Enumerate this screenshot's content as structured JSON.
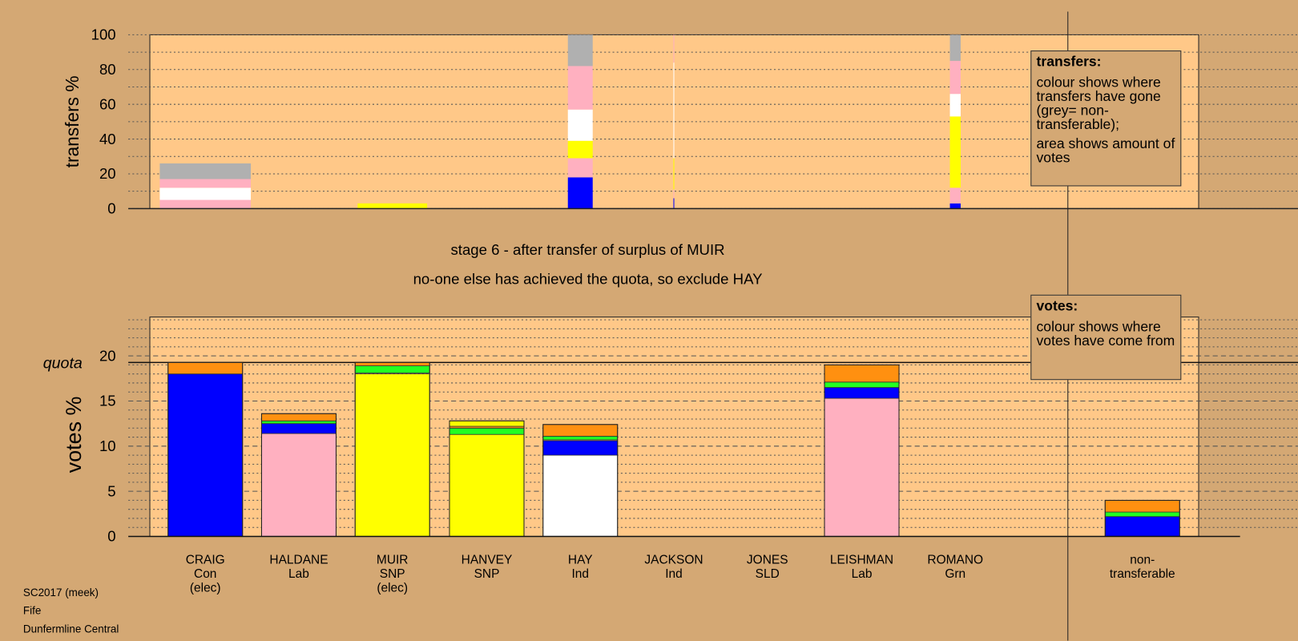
{
  "info": {
    "election": "SC2017 (meek)",
    "council": "Fife",
    "ward": "Dunfermline Central"
  },
  "stage": {
    "line1": "stage 6 - after transfer of surplus of MUIR",
    "line2": "no-one else has achieved the quota, so exclude HAY"
  },
  "legend_transfers": {
    "title": "transfers:",
    "text1": "colour shows where transfers have gone (grey= non-transferable);",
    "text2": "area shows amount of votes"
  },
  "legend_votes": {
    "title": "votes:",
    "text1": "colour shows where votes have come from"
  },
  "colors": {
    "Con": "#0000ff",
    "Lab": "#ffb0c0",
    "SNP": "#ffff00",
    "Ind": "#ffffff",
    "Grn": "#22ff22",
    "SLD": "#ff9010",
    "nontransferable": "#b0b0b0",
    "plot_bg": "#ffc888",
    "page_bg": "#d4a874"
  },
  "chart_data": [
    {
      "type": "bar",
      "title": "transfers",
      "ylabel": "transfers %",
      "ylim": [
        0,
        100
      ],
      "yticks": [
        0,
        20,
        40,
        60,
        80,
        100
      ],
      "note": "stacked segments show share of transfers (bottom to top); width reflects amount of votes",
      "columns": [
        {
          "candidate": "CRAIG",
          "amount": 110,
          "segments": [
            [
              "Lab",
              0,
              5
            ],
            [
              "Ind",
              5,
              12
            ],
            [
              "Lab",
              12,
              17
            ],
            [
              "nontransferable",
              17,
              26
            ]
          ]
        },
        {
          "candidate": "MUIR",
          "amount": 84,
          "segments": [
            [
              "SNP",
              0,
              3
            ]
          ]
        },
        {
          "candidate": "JACKSON",
          "amount": 1,
          "segments": [
            [
              "Con",
              0,
              6
            ],
            [
              "Lab",
              6,
              11
            ],
            [
              "SNP",
              11,
              29
            ],
            [
              "Ind",
              29,
              84
            ],
            [
              "Lab",
              84,
              100
            ]
          ]
        },
        {
          "candidate": "HAY",
          "amount": 30,
          "segments": [
            [
              "Con",
              0,
              18
            ],
            [
              "Lab",
              18,
              29
            ],
            [
              "SNP",
              29,
              39
            ],
            [
              "Ind",
              39,
              57
            ],
            [
              "Lab",
              57,
              82
            ],
            [
              "nontransferable",
              82,
              100
            ]
          ]
        },
        {
          "candidate": "ROMANO",
          "amount": 13,
          "segments": [
            [
              "Con",
              0,
              3
            ],
            [
              "Lab",
              3,
              12
            ],
            [
              "SNP",
              12,
              53
            ],
            [
              "Ind",
              53,
              66
            ],
            [
              "Lab",
              66,
              85
            ],
            [
              "nontransferable",
              85,
              100
            ]
          ]
        }
      ]
    },
    {
      "type": "bar",
      "title": "votes",
      "ylabel": "votes %",
      "ylim": [
        0,
        24.3
      ],
      "yticks": [
        0,
        5,
        10,
        15,
        20
      ],
      "quota": 19.27,
      "quota_label": "quota",
      "categories": [
        {
          "name": "CRAIG",
          "party": "Con",
          "note": "(elec)",
          "segments": [
            [
              "Con",
              0,
              18.0
            ],
            [
              "SLD",
              18.0,
              19.27
            ]
          ]
        },
        {
          "name": "HALDANE",
          "party": "Lab",
          "note": "",
          "segments": [
            [
              "Lab",
              0,
              11.4
            ],
            [
              "Con",
              11.4,
              12.5
            ],
            [
              "Grn",
              12.5,
              12.8
            ],
            [
              "SLD",
              12.8,
              13.6
            ]
          ]
        },
        {
          "name": "MUIR",
          "party": "SNP",
          "note": "(elec)",
          "segments": [
            [
              "SNP",
              0,
              18.0
            ],
            [
              "Grn",
              18.1,
              18.9
            ],
            [
              "SLD",
              18.9,
              19.27
            ]
          ]
        },
        {
          "name": "HANVEY",
          "party": "SNP",
          "note": "",
          "segments": [
            [
              "SNP",
              0,
              11.3
            ],
            [
              "Grn",
              11.3,
              12.0
            ],
            [
              "SLD",
              12.0,
              12.2
            ],
            [
              "SNP",
              12.2,
              12.8
            ]
          ]
        },
        {
          "name": "HAY",
          "party": "Ind",
          "note": "",
          "segments": [
            [
              "Ind",
              0,
              9.0
            ],
            [
              "Con",
              9.0,
              10.6
            ],
            [
              "Grn",
              10.7,
              11.1
            ],
            [
              "SLD",
              11.1,
              12.4
            ]
          ]
        },
        {
          "name": "JACKSON",
          "party": "Ind",
          "note": "",
          "segments": []
        },
        {
          "name": "JONES",
          "party": "SLD",
          "note": "",
          "segments": []
        },
        {
          "name": "LEISHMAN",
          "party": "Lab",
          "note": "",
          "segments": [
            [
              "Lab",
              0,
              15.3
            ],
            [
              "Con",
              15.3,
              16.5
            ],
            [
              "Grn",
              16.5,
              17.1
            ],
            [
              "SLD",
              17.1,
              19.0
            ]
          ]
        },
        {
          "name": "ROMANO",
          "party": "Grn",
          "note": "",
          "segments": []
        },
        {
          "name": "non-",
          "party": "transferable",
          "note": "",
          "segments": [
            [
              "Con",
              0,
              2.2
            ],
            [
              "Grn",
              2.2,
              2.7
            ],
            [
              "SLD",
              2.7,
              4.0
            ]
          ]
        }
      ]
    }
  ]
}
